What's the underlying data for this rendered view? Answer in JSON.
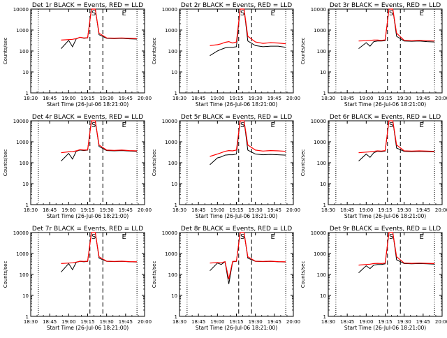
{
  "chart_data": {
    "type": "line",
    "time_ticks": [
      "18:30",
      "18:45",
      "19:00",
      "19:15",
      "19:30",
      "19:45",
      "20:00"
    ],
    "y_ticks": [
      "1",
      "10",
      "100",
      "1000",
      "10000"
    ],
    "ylim": [
      1,
      10000
    ],
    "y_scale": "log",
    "grid": false,
    "colors": {
      "events": "#000000",
      "lld": "#ff0000"
    },
    "markers": [
      "S",
      "E"
    ],
    "panels": [
      {
        "title": "Det 1r BLACK = Events, RED = LLD",
        "xlabel": "Start Time (26-Jul-06 18:21:00)",
        "ylabel": "Counts/sec",
        "x": [
          18.9,
          19.0,
          19.05,
          19.1,
          19.15,
          19.2,
          19.25,
          19.3,
          19.35,
          19.4,
          19.5,
          19.6,
          19.7,
          19.8,
          19.9
        ],
        "events": [
          130,
          320,
          160,
          380,
          450,
          400,
          420,
          10000,
          10000,
          600,
          400,
          390,
          400,
          380,
          370
        ],
        "lld": [
          330,
          350,
          360,
          390,
          450,
          420,
          430,
          10000,
          10000,
          700,
          420,
          410,
          420,
          400,
          390
        ]
      },
      {
        "title": "Det 2r BLACK = Events, RED = LLD",
        "xlabel": "Start Time (26-Jul-06 18:21:00)",
        "ylabel": "Counts/sec",
        "x": [
          18.9,
          19.0,
          19.05,
          19.1,
          19.15,
          19.2,
          19.25,
          19.3,
          19.35,
          19.4,
          19.5,
          19.6,
          19.7,
          19.8,
          19.9
        ],
        "events": [
          60,
          100,
          120,
          140,
          150,
          150,
          160,
          10000,
          10000,
          300,
          180,
          160,
          170,
          170,
          150
        ],
        "lld": [
          180,
          200,
          220,
          260,
          280,
          240,
          270,
          10000,
          10000,
          500,
          270,
          230,
          250,
          240,
          220
        ]
      },
      {
        "title": "Det 3r BLACK = Events, RED = LLD",
        "xlabel": "Start Time (26-Jul-06 18:21:00)",
        "ylabel": "Counts/sec",
        "x": [
          18.9,
          19.0,
          19.05,
          19.1,
          19.15,
          19.2,
          19.25,
          19.3,
          19.35,
          19.4,
          19.5,
          19.6,
          19.7,
          19.8,
          19.9
        ],
        "events": [
          130,
          250,
          170,
          280,
          300,
          300,
          310,
          10000,
          10000,
          500,
          300,
          290,
          300,
          280,
          270
        ],
        "lld": [
          300,
          310,
          320,
          330,
          330,
          320,
          340,
          10000,
          10000,
          700,
          320,
          310,
          320,
          310,
          300
        ]
      },
      {
        "title": "Det 4r BLACK = Events, RED = LLD",
        "xlabel": "Start Time (26-Jul-06 18:21:00)",
        "ylabel": "Counts/sec",
        "x": [
          18.9,
          19.0,
          19.05,
          19.1,
          19.15,
          19.2,
          19.25,
          19.3,
          19.35,
          19.4,
          19.5,
          19.6,
          19.7,
          19.8,
          19.9
        ],
        "events": [
          120,
          280,
          150,
          350,
          400,
          380,
          400,
          10000,
          10000,
          600,
          380,
          370,
          380,
          360,
          350
        ],
        "lld": [
          300,
          330,
          340,
          370,
          420,
          400,
          410,
          10000,
          10000,
          700,
          400,
          390,
          400,
          380,
          370
        ]
      },
      {
        "title": "Det 5r BLACK = Events, RED = LLD",
        "xlabel": "Start Time (26-Jul-06 18:21:00)",
        "ylabel": "Counts/sec",
        "x": [
          18.9,
          19.0,
          19.05,
          19.1,
          19.15,
          19.2,
          19.25,
          19.3,
          19.35,
          19.4,
          19.5,
          19.6,
          19.7,
          19.8,
          19.9
        ],
        "events": [
          80,
          170,
          190,
          230,
          240,
          240,
          260,
          10000,
          10000,
          400,
          260,
          240,
          250,
          240,
          230
        ],
        "lld": [
          200,
          260,
          300,
          350,
          380,
          370,
          400,
          10000,
          10000,
          700,
          400,
          360,
          380,
          370,
          350
        ]
      },
      {
        "title": "Det 6r BLACK = Events, RED = LLD",
        "xlabel": "Start Time (26-Jul-06 18:21:00)",
        "ylabel": "Counts/sec",
        "x": [
          18.9,
          19.0,
          19.05,
          19.1,
          19.15,
          19.2,
          19.25,
          19.3,
          19.35,
          19.4,
          19.5,
          19.6,
          19.7,
          19.8,
          19.9
        ],
        "events": [
          120,
          260,
          180,
          300,
          350,
          340,
          360,
          10000,
          10000,
          500,
          350,
          340,
          350,
          340,
          330
        ],
        "lld": [
          300,
          320,
          330,
          350,
          370,
          360,
          380,
          10000,
          10000,
          700,
          370,
          360,
          370,
          360,
          350
        ]
      },
      {
        "title": "Det 7r BLACK = Events, RED = LLD",
        "xlabel": "Start Time (26-Jul-06 18:21:00)",
        "ylabel": "Counts/sec",
        "x": [
          18.9,
          19.0,
          19.05,
          19.1,
          19.15,
          19.2,
          19.25,
          19.3,
          19.35,
          19.4,
          19.5,
          19.6,
          19.7,
          19.8,
          19.9
        ],
        "events": [
          130,
          330,
          170,
          380,
          420,
          400,
          420,
          10000,
          10000,
          600,
          420,
          410,
          420,
          400,
          390
        ],
        "lld": [
          330,
          350,
          360,
          390,
          430,
          420,
          430,
          10000,
          10000,
          700,
          430,
          420,
          430,
          410,
          400
        ]
      },
      {
        "title": "Det 8r BLACK = Events, RED = LLD",
        "xlabel": "Start Time (26-Jul-06 18:21:00)",
        "ylabel": "Counts/sec",
        "x": [
          18.9,
          19.0,
          19.05,
          19.1,
          19.15,
          19.2,
          19.25,
          19.3,
          19.35,
          19.4,
          19.5,
          19.6,
          19.7,
          19.8,
          19.9
        ],
        "events": [
          150,
          350,
          300,
          400,
          35,
          400,
          420,
          10000,
          10000,
          600,
          420,
          410,
          420,
          400,
          390
        ],
        "lld": [
          350,
          370,
          360,
          410,
          60,
          420,
          430,
          10000,
          10000,
          700,
          430,
          420,
          430,
          410,
          400
        ]
      },
      {
        "title": "Det 9r BLACK = Events, RED = LLD",
        "xlabel": "Start Time (26-Jul-06 18:21:00)",
        "ylabel": "Counts/sec",
        "x": [
          18.9,
          19.0,
          19.05,
          19.1,
          19.15,
          19.2,
          19.25,
          19.3,
          19.35,
          19.4,
          19.5,
          19.6,
          19.7,
          19.8,
          19.9
        ],
        "events": [
          120,
          260,
          190,
          280,
          300,
          300,
          320,
          10000,
          10000,
          500,
          330,
          320,
          330,
          320,
          310
        ],
        "lld": [
          280,
          300,
          310,
          330,
          340,
          330,
          350,
          10000,
          10000,
          700,
          350,
          340,
          350,
          340,
          330
        ]
      }
    ]
  }
}
